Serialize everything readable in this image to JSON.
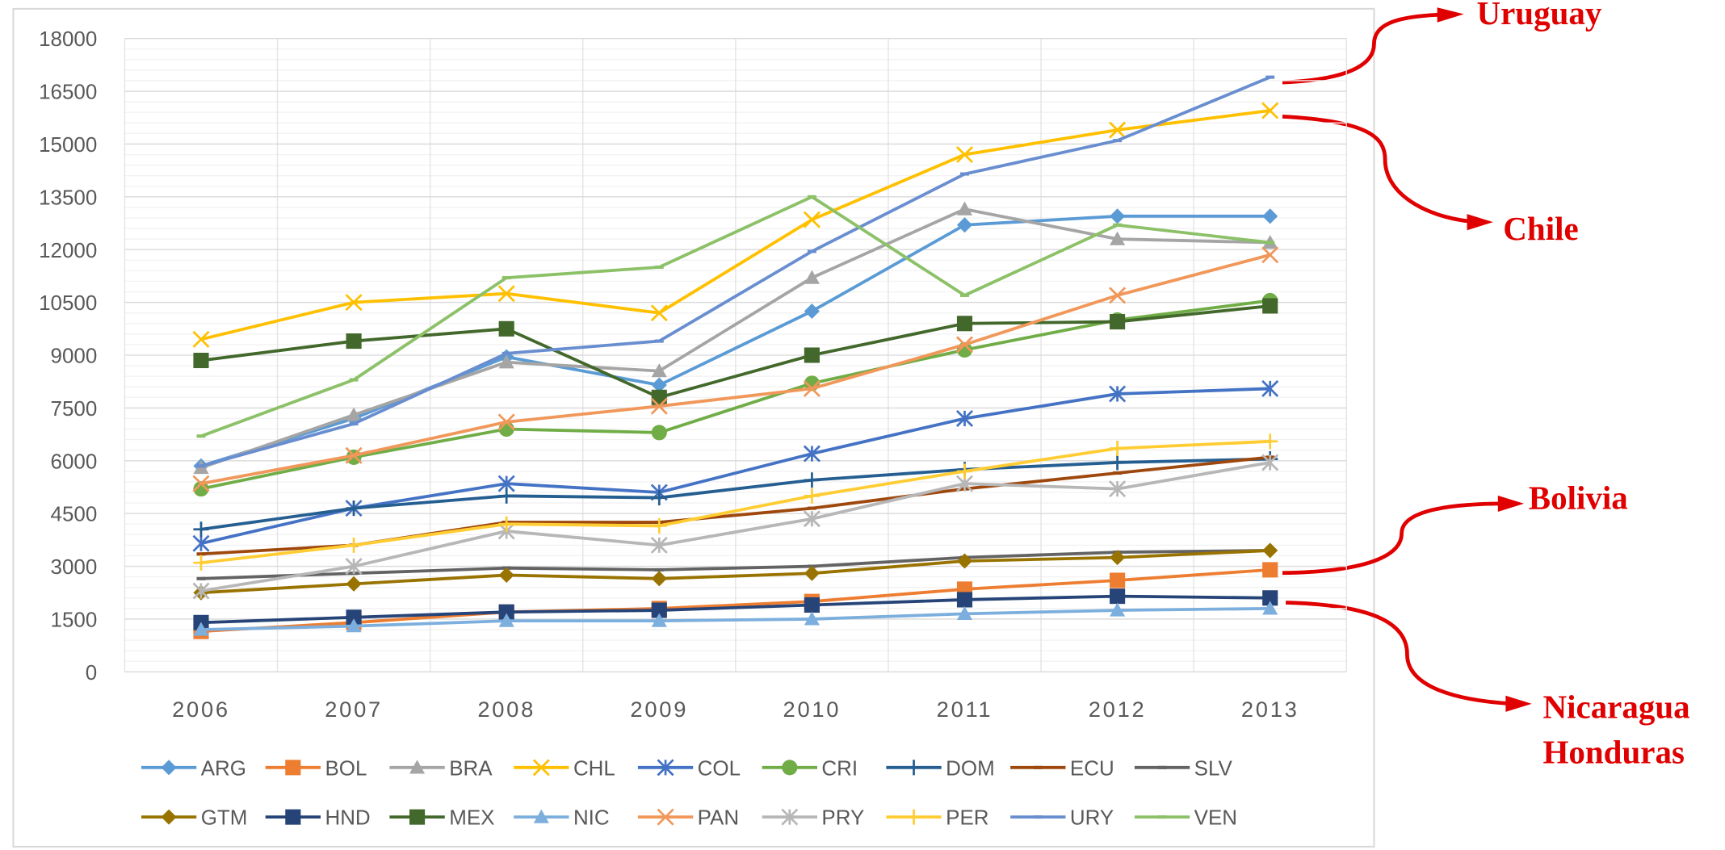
{
  "chart_data": {
    "type": "line",
    "categories": [
      "2006",
      "2007",
      "2008",
      "2009",
      "2010",
      "2011",
      "2012",
      "2013"
    ],
    "ylim": [
      0,
      18000
    ],
    "yticks": [
      0,
      1500,
      3000,
      4500,
      6000,
      7500,
      9000,
      10500,
      12000,
      13500,
      15000,
      16500,
      18000
    ],
    "grid": true,
    "legend": "bottom",
    "series": [
      {
        "name": "ARG",
        "color": "#5b9bd5",
        "marker": "diamond",
        "values": [
          5850,
          7200,
          8950,
          8150,
          10250,
          12700,
          12950,
          12950
        ]
      },
      {
        "name": "BOL",
        "color": "#ed7d31",
        "marker": "square",
        "values": [
          1150,
          1400,
          1700,
          1800,
          2000,
          2350,
          2600,
          2900
        ]
      },
      {
        "name": "BRA",
        "color": "#a5a5a5",
        "marker": "triangle",
        "values": [
          5800,
          7300,
          8800,
          8550,
          11200,
          13150,
          12300,
          12200
        ]
      },
      {
        "name": "CHL",
        "color": "#ffc000",
        "marker": "x",
        "values": [
          9450,
          10500,
          10750,
          10200,
          12850,
          14700,
          15400,
          15950
        ]
      },
      {
        "name": "COL",
        "color": "#4472c4",
        "marker": "star",
        "values": [
          3650,
          4650,
          5350,
          5100,
          6200,
          7200,
          7900,
          8050
        ]
      },
      {
        "name": "CRI",
        "color": "#70ad47",
        "marker": "circle",
        "values": [
          5200,
          6100,
          6900,
          6800,
          8200,
          9150,
          10000,
          10550
        ]
      },
      {
        "name": "DOM",
        "color": "#255e91",
        "marker": "plus",
        "values": [
          4050,
          4650,
          5000,
          4950,
          5450,
          5750,
          5950,
          6050
        ]
      },
      {
        "name": "ECU",
        "color": "#9e480e",
        "marker": "dash",
        "values": [
          3350,
          3600,
          4250,
          4250,
          4650,
          5200,
          5650,
          6100
        ]
      },
      {
        "name": "SLV",
        "color": "#636363",
        "marker": "dash",
        "values": [
          2650,
          2800,
          2950,
          2900,
          3000,
          3250,
          3400,
          3450
        ]
      },
      {
        "name": "GTM",
        "color": "#997300",
        "marker": "diamond",
        "values": [
          2250,
          2500,
          2750,
          2650,
          2800,
          3150,
          3250,
          3450
        ]
      },
      {
        "name": "HND",
        "color": "#264478",
        "marker": "square",
        "values": [
          1400,
          1550,
          1700,
          1750,
          1900,
          2050,
          2150,
          2100
        ]
      },
      {
        "name": "MEX",
        "color": "#43682b",
        "marker": "square",
        "values": [
          8850,
          9400,
          9750,
          7800,
          9000,
          9900,
          9950,
          10400
        ]
      },
      {
        "name": "NIC",
        "color": "#7cafdd",
        "marker": "triangle",
        "values": [
          1200,
          1300,
          1450,
          1450,
          1500,
          1650,
          1750,
          1800
        ]
      },
      {
        "name": "PAN",
        "color": "#f1975a",
        "marker": "x",
        "values": [
          5350,
          6150,
          7100,
          7550,
          8050,
          9300,
          10700,
          11850
        ]
      },
      {
        "name": "PRY",
        "color": "#b7b7b7",
        "marker": "star",
        "values": [
          2300,
          3000,
          4000,
          3600,
          4350,
          5350,
          5200,
          5950
        ]
      },
      {
        "name": "PER",
        "color": "#ffcd33",
        "marker": "plus",
        "values": [
          3100,
          3600,
          4200,
          4150,
          5000,
          5700,
          6350,
          6550
        ]
      },
      {
        "name": "URY",
        "color": "#698ed0",
        "marker": "dash",
        "values": [
          5850,
          7050,
          9050,
          9400,
          11950,
          14150,
          15100,
          16900
        ]
      },
      {
        "name": "VEN",
        "color": "#8cc168",
        "marker": "dash",
        "values": [
          6700,
          8300,
          11200,
          11500,
          13500,
          10700,
          12700,
          12200
        ]
      }
    ],
    "annotations": [
      "Uruguay",
      "Chile",
      "Bolivia",
      "Nicaragua",
      "Honduras"
    ]
  }
}
